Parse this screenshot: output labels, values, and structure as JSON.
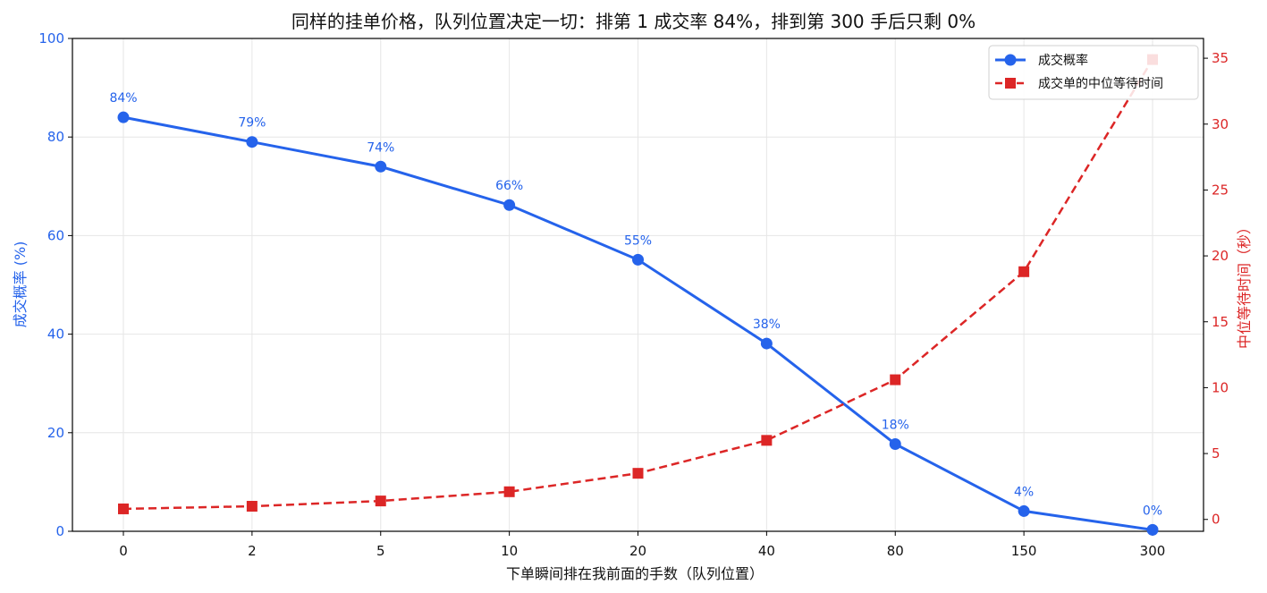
{
  "chart_data": {
    "type": "line",
    "title": "同样的挂单价格，队列位置决定一切：排第 1 成交率 84%，排到第 300 手后只剩 0%",
    "xlabel": "下单瞬间排在我前面的手数（队列位置）",
    "ylabel_left": "成交概率 (%)",
    "ylabel_right": "中位等待时间（秒）",
    "categories": [
      "0",
      "2",
      "5",
      "10",
      "20",
      "40",
      "80",
      "150",
      "300"
    ],
    "ylim_left": [
      0,
      100
    ],
    "yticks_left": [
      0,
      20,
      40,
      60,
      80,
      100
    ],
    "ylim_right": [
      -0.9,
      36.5
    ],
    "yticks_right": [
      0,
      5,
      10,
      15,
      20,
      25,
      30,
      35
    ],
    "grid": true,
    "legend_position": "upper right",
    "series": [
      {
        "name": "成交概率",
        "axis": "left",
        "color": "#2563eb",
        "marker": "circle",
        "linestyle": "solid",
        "values": [
          84,
          79,
          74,
          66.2,
          55.1,
          38.1,
          17.7,
          4.1,
          0.3
        ],
        "data_labels": [
          "84%",
          "79%",
          "74%",
          "66%",
          "55%",
          "38%",
          "18%",
          "4%",
          "0%"
        ]
      },
      {
        "name": "成交单的中位等待时间",
        "axis": "right",
        "color": "#dc2626",
        "marker": "square",
        "linestyle": "dashed",
        "values": [
          0.8,
          1.0,
          1.4,
          2.1,
          3.5,
          6.0,
          10.6,
          18.8,
          34.9
        ]
      }
    ]
  }
}
